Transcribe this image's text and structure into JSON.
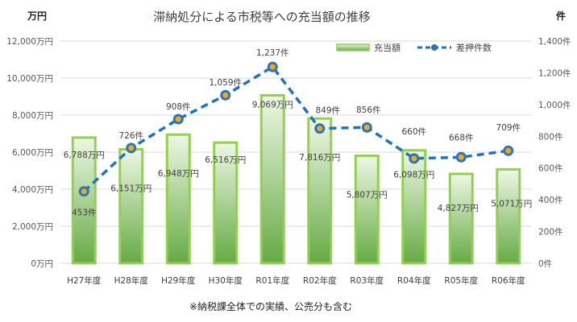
{
  "chart_data": {
    "type": "bar+line",
    "title": "滞納処分による市税等への充当額の推移",
    "note": "※納税課全体での実績、公売分も含む",
    "y_left": {
      "unit_label": "万円",
      "range": [
        0,
        12000
      ],
      "ticks": [
        "0万円",
        "2,000万円",
        "4,000万円",
        "6,000万円",
        "8,000万円",
        "10,000万円",
        "12,000万円"
      ]
    },
    "y_right": {
      "unit_label": "件",
      "range": [
        0,
        1400
      ],
      "ticks": [
        "0件",
        "200件",
        "400件",
        "600件",
        "800件",
        "1,000件",
        "1,200件",
        "1,400件"
      ]
    },
    "categories": [
      "H27年度",
      "H28年度",
      "H29年度",
      "H30年度",
      "R01年度",
      "R02年度",
      "R03年度",
      "R04年度",
      "R05年度",
      "R06年度"
    ],
    "series": [
      {
        "name": "充当額",
        "kind": "bar",
        "axis": "left",
        "values": [
          6788,
          6151,
          6948,
          6516,
          9069,
          7816,
          5807,
          6098,
          4827,
          5071
        ],
        "labels": [
          "6,788万円",
          "6,151万円",
          "6,948万円",
          "6,516万円",
          "9,069万円",
          "7,816万円",
          "5,807万円",
          "6,098万円",
          "4,827万円",
          "5,071万円"
        ]
      },
      {
        "name": "差押件数",
        "kind": "line",
        "axis": "right",
        "values": [
          453,
          726,
          908,
          1059,
          1237,
          849,
          856,
          660,
          668,
          709
        ],
        "labels": [
          "453件",
          "726件",
          "908件",
          "1,059件",
          "1,237件",
          "849件",
          "856件",
          "660件",
          "668件",
          "709件"
        ]
      }
    ],
    "grid": true,
    "legend": "top-right",
    "colors": {
      "bar_fill_top": "#eaf5dc",
      "bar_fill_bottom": "#6ab04c",
      "bar_border": "#92d050",
      "line": "#1e73be",
      "marker": "#2e75b6",
      "marker_fill": "#f5a623",
      "grid": "#d9d9d9"
    }
  }
}
